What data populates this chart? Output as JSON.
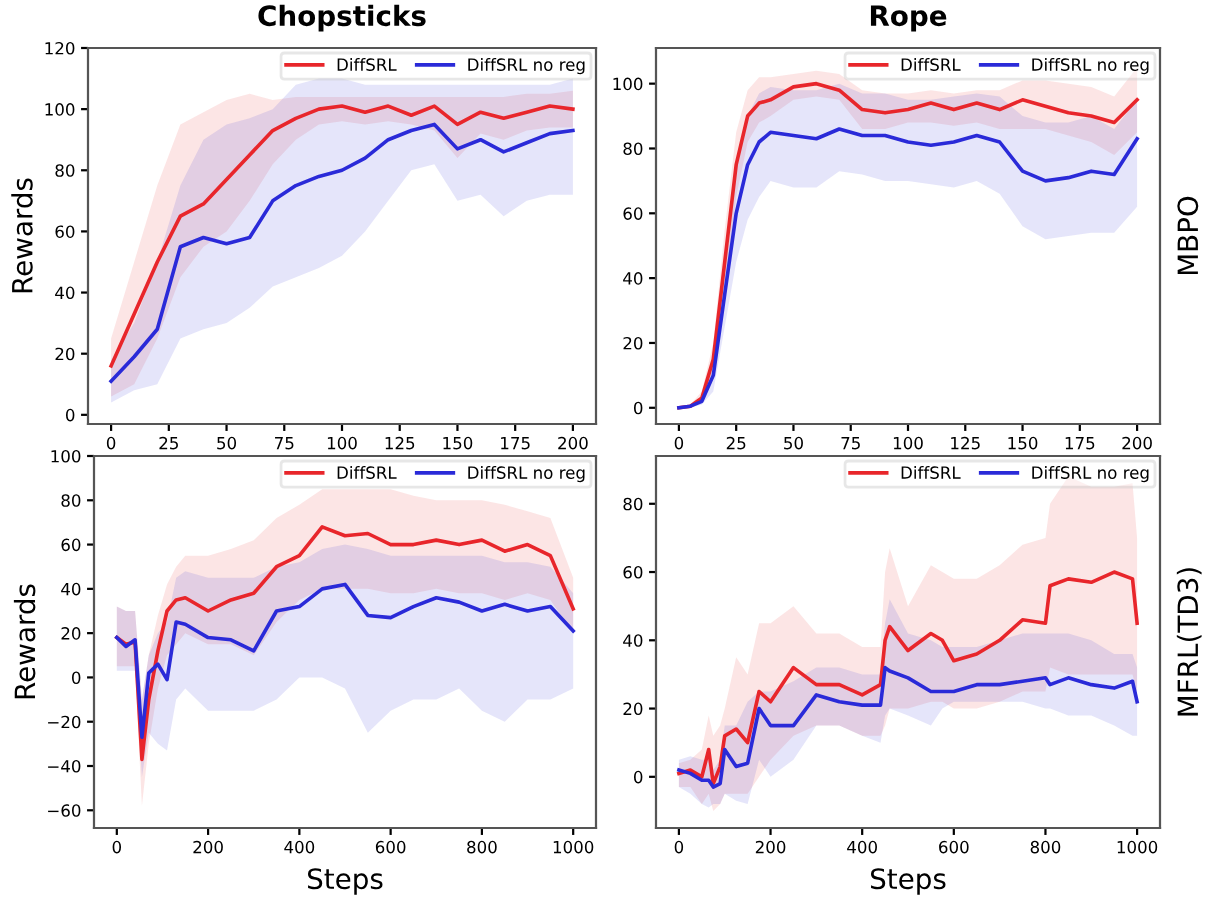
{
  "chart_data": [
    {
      "type": "line",
      "title": "Chopsticks",
      "ylabel": "Rewards",
      "xlim": [
        -10,
        210
      ],
      "ylim": [
        -3,
        120
      ],
      "xticks": [
        0,
        25,
        50,
        75,
        100,
        125,
        150,
        175,
        200
      ],
      "yticks": [
        0,
        20,
        40,
        60,
        80,
        100,
        120
      ],
      "legend": "top right",
      "grid": false,
      "x": [
        0,
        10,
        20,
        30,
        40,
        50,
        60,
        70,
        80,
        90,
        100,
        110,
        120,
        130,
        140,
        150,
        160,
        170,
        180,
        190,
        200
      ],
      "series": [
        {
          "name": "DiffSRL",
          "color": "#e8262b",
          "values": [
            16,
            33,
            50,
            65,
            69,
            77,
            85,
            93,
            97,
            100,
            101,
            99,
            101,
            98,
            101,
            95,
            99,
            97,
            99,
            101,
            100
          ],
          "lower": [
            6,
            10,
            25,
            45,
            55,
            60,
            70,
            82,
            90,
            95,
            96,
            95,
            96,
            95,
            93,
            84,
            92,
            90,
            93,
            94,
            94
          ],
          "upper": [
            25,
            50,
            75,
            95,
            99,
            103,
            105,
            103,
            104,
            104,
            104,
            104,
            104,
            104,
            104,
            104,
            104,
            104,
            105,
            105,
            106
          ]
        },
        {
          "name": "DiffSRL no reg",
          "color": "#2a2ad8",
          "values": [
            11,
            19,
            28,
            55,
            58,
            56,
            58,
            70,
            75,
            78,
            80,
            84,
            90,
            93,
            95,
            87,
            90,
            86,
            89,
            92,
            93
          ],
          "lower": [
            4,
            8,
            10,
            25,
            28,
            30,
            35,
            42,
            45,
            48,
            52,
            60,
            70,
            80,
            82,
            70,
            72,
            65,
            70,
            72,
            72
          ],
          "upper": [
            18,
            30,
            50,
            75,
            90,
            95,
            97,
            100,
            108,
            110,
            110,
            108,
            108,
            108,
            108,
            108,
            108,
            108,
            108,
            108,
            110
          ]
        }
      ]
    },
    {
      "type": "line",
      "title": "Rope",
      "annotations": [
        "MBPO"
      ],
      "xlim": [
        -10,
        210
      ],
      "ylim": [
        -5,
        111
      ],
      "xticks": [
        0,
        25,
        50,
        75,
        100,
        125,
        150,
        175,
        200
      ],
      "yticks": [
        0,
        20,
        40,
        60,
        80,
        100
      ],
      "legend": "top right",
      "grid": false,
      "x": [
        0,
        5,
        10,
        15,
        20,
        25,
        30,
        35,
        40,
        50,
        60,
        70,
        80,
        90,
        100,
        110,
        120,
        130,
        140,
        150,
        160,
        170,
        180,
        190,
        200
      ],
      "series": [
        {
          "name": "DiffSRL",
          "color": "#e8262b",
          "values": [
            0,
            0.5,
            3,
            15,
            45,
            75,
            90,
            94,
            95,
            99,
            100,
            98,
            92,
            91,
            92,
            94,
            92,
            94,
            92,
            95,
            93,
            91,
            90,
            88,
            95
          ],
          "lower": [
            0,
            0,
            2,
            10,
            35,
            65,
            82,
            88,
            90,
            95,
            96,
            95,
            86,
            86,
            88,
            88,
            87,
            88,
            86,
            86,
            86,
            84,
            82,
            78,
            85
          ],
          "upper": [
            0,
            1,
            5,
            20,
            55,
            85,
            98,
            102,
            102,
            103,
            104,
            103,
            98,
            97,
            97,
            98,
            97,
            98,
            98,
            101,
            101,
            100,
            99,
            96,
            105
          ]
        },
        {
          "name": "DiffSRL no reg",
          "color": "#2a2ad8",
          "values": [
            0,
            0.5,
            2,
            10,
            35,
            60,
            75,
            82,
            85,
            84,
            83,
            86,
            84,
            84,
            82,
            81,
            82,
            84,
            82,
            73,
            70,
            71,
            73,
            72,
            83
          ],
          "lower": [
            0,
            0,
            1,
            5,
            25,
            45,
            58,
            65,
            70,
            68,
            68,
            73,
            72,
            70,
            70,
            69,
            68,
            70,
            66,
            56,
            52,
            53,
            54,
            54,
            62
          ],
          "upper": [
            0,
            1,
            3,
            15,
            45,
            75,
            90,
            97,
            99,
            98,
            98,
            100,
            97,
            97,
            95,
            95,
            96,
            97,
            96,
            90,
            88,
            88,
            90,
            86,
            95
          ]
        }
      ]
    },
    {
      "type": "line",
      "xlabel": "Steps",
      "ylabel": "Rewards",
      "xlim": [
        -50,
        1050
      ],
      "ylim": [
        -68,
        100
      ],
      "xticks": [
        0,
        200,
        400,
        600,
        800,
        1000
      ],
      "yticks": [
        -60,
        -40,
        -20,
        0,
        20,
        40,
        60,
        80,
        100
      ],
      "legend": "top right",
      "grid": false,
      "x": [
        0,
        20,
        40,
        55,
        70,
        90,
        110,
        130,
        150,
        200,
        250,
        300,
        350,
        400,
        450,
        500,
        550,
        600,
        650,
        700,
        750,
        800,
        850,
        900,
        950,
        1000
      ],
      "series": [
        {
          "name": "DiffSRL",
          "color": "#e8262b",
          "values": [
            18,
            15,
            16,
            -37,
            -10,
            12,
            30,
            35,
            36,
            30,
            35,
            38,
            50,
            55,
            68,
            64,
            65,
            60,
            60,
            62,
            60,
            62,
            57,
            60,
            55,
            31
          ],
          "lower": [
            5,
            5,
            5,
            -58,
            -30,
            -5,
            10,
            15,
            20,
            15,
            15,
            10,
            25,
            35,
            40,
            40,
            40,
            38,
            38,
            40,
            38,
            38,
            35,
            38,
            35,
            20
          ],
          "upper": [
            32,
            30,
            30,
            -10,
            10,
            28,
            42,
            50,
            55,
            55,
            58,
            62,
            72,
            78,
            85,
            85,
            85,
            85,
            82,
            80,
            80,
            80,
            78,
            75,
            72,
            45
          ]
        },
        {
          "name": "DiffSRL no reg",
          "color": "#2a2ad8",
          "values": [
            18,
            14,
            17,
            -27,
            2,
            6,
            -1,
            25,
            24,
            18,
            17,
            12,
            30,
            32,
            40,
            42,
            28,
            27,
            32,
            36,
            34,
            30,
            33,
            30,
            32,
            21
          ],
          "lower": [
            3,
            3,
            3,
            -45,
            -25,
            -30,
            -33,
            -10,
            -5,
            -15,
            -15,
            -15,
            -10,
            0,
            0,
            -5,
            -25,
            -15,
            -10,
            -10,
            -5,
            -15,
            -20,
            -10,
            -10,
            -5
          ],
          "upper": [
            32,
            30,
            30,
            -10,
            10,
            20,
            25,
            45,
            48,
            45,
            45,
            45,
            50,
            52,
            58,
            60,
            58,
            55,
            55,
            55,
            55,
            55,
            52,
            52,
            50,
            38
          ]
        }
      ]
    },
    {
      "type": "line",
      "xlabel": "Steps",
      "annotations": [
        "MFRL(TD3)"
      ],
      "xlim": [
        -50,
        1050
      ],
      "ylim": [
        -15,
        94
      ],
      "xticks": [
        0,
        200,
        400,
        600,
        800,
        1000
      ],
      "yticks": [
        0,
        20,
        40,
        60,
        80
      ],
      "legend": "top right",
      "grid": false,
      "x": [
        0,
        25,
        50,
        65,
        75,
        90,
        100,
        125,
        150,
        175,
        200,
        250,
        300,
        350,
        400,
        440,
        450,
        460,
        500,
        550,
        575,
        600,
        650,
        700,
        750,
        800,
        810,
        850,
        900,
        950,
        990,
        1000
      ],
      "series": [
        {
          "name": "DiffSRL",
          "color": "#e8262b",
          "values": [
            1,
            2,
            0,
            8,
            -2,
            3,
            12,
            14,
            10,
            25,
            22,
            32,
            27,
            27,
            24,
            27,
            40,
            44,
            37,
            42,
            40,
            34,
            36,
            40,
            46,
            45,
            56,
            58,
            57,
            60,
            58,
            45
          ],
          "lower": [
            -3,
            -3,
            -8,
            -5,
            -10,
            -8,
            -5,
            -5,
            -5,
            0,
            5,
            12,
            15,
            15,
            12,
            12,
            15,
            20,
            20,
            22,
            22,
            20,
            20,
            22,
            25,
            25,
            32,
            30,
            30,
            30,
            30,
            25
          ],
          "upper": [
            4,
            5,
            8,
            18,
            12,
            15,
            20,
            35,
            30,
            45,
            45,
            50,
            42,
            42,
            38,
            38,
            60,
            67,
            50,
            62,
            60,
            58,
            58,
            62,
            68,
            70,
            80,
            88,
            85,
            85,
            86,
            70
          ]
        },
        {
          "name": "DiffSRL no reg",
          "color": "#2a2ad8",
          "values": [
            2,
            1,
            -1,
            -1,
            -3,
            -2,
            8,
            3,
            4,
            20,
            15,
            15,
            24,
            22,
            21,
            21,
            32,
            31,
            29,
            25,
            25,
            25,
            27,
            27,
            28,
            29,
            27,
            29,
            27,
            26,
            28,
            22
          ],
          "lower": [
            -3,
            -5,
            -8,
            -9,
            -8,
            -8,
            -5,
            -7,
            -8,
            5,
            0,
            5,
            15,
            15,
            12,
            10,
            18,
            20,
            18,
            15,
            20,
            22,
            22,
            22,
            22,
            20,
            20,
            18,
            18,
            15,
            12,
            12
          ],
          "upper": [
            5,
            6,
            5,
            5,
            2,
            5,
            15,
            15,
            22,
            25,
            25,
            28,
            32,
            32,
            30,
            30,
            45,
            52,
            42,
            40,
            38,
            38,
            38,
            40,
            42,
            42,
            42,
            42,
            40,
            36,
            36,
            32
          ]
        }
      ]
    }
  ]
}
